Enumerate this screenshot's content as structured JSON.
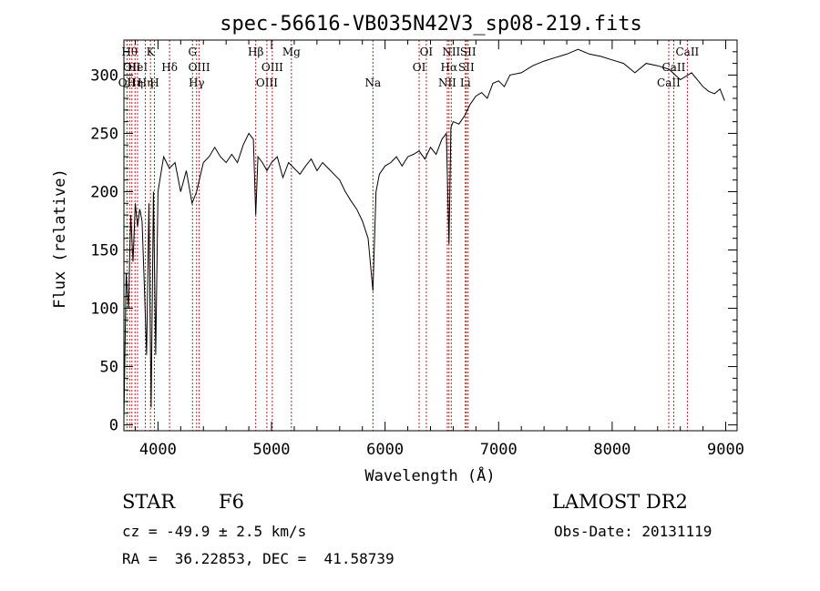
{
  "chart_data": {
    "type": "line",
    "title": "spec-56616-VB035N42V3_sp08-219.fits",
    "xlabel": "Wavelength (Å)",
    "ylabel": "Flux (relative)",
    "xlim": [
      3700,
      9100
    ],
    "ylim": [
      -5,
      330
    ],
    "xticks": [
      4000,
      5000,
      6000,
      7000,
      8000,
      9000
    ],
    "yticks": [
      0,
      50,
      100,
      150,
      200,
      250,
      300
    ],
    "line_color": "#000000",
    "marker_color": "#b22222",
    "series": [
      {
        "x": [
          3700,
          3720,
          3740,
          3760,
          3780,
          3800,
          3820,
          3840,
          3860,
          3880,
          3900,
          3920,
          3940,
          3960,
          3980,
          4000,
          4050,
          4100,
          4150,
          4200,
          4250,
          4300,
          4340,
          4400,
          4450,
          4500,
          4550,
          4600,
          4650,
          4700,
          4750,
          4800,
          4840,
          4861,
          4880,
          4920,
          4960,
          5000,
          5050,
          5100,
          5150,
          5200,
          5250,
          5300,
          5350,
          5400,
          5450,
          5500,
          5550,
          5600,
          5650,
          5700,
          5750,
          5800,
          5850,
          5893,
          5920,
          5950,
          6000,
          6050,
          6100,
          6150,
          6200,
          6250,
          6300,
          6350,
          6400,
          6450,
          6500,
          6540,
          6563,
          6580,
          6600,
          6650,
          6700,
          6750,
          6800,
          6850,
          6900,
          6950,
          7000,
          7050,
          7100,
          7200,
          7300,
          7400,
          7500,
          7600,
          7700,
          7800,
          7900,
          8000,
          8100,
          8200,
          8300,
          8400,
          8500,
          8600,
          8700,
          8800,
          8850,
          8900,
          8950,
          8990
        ],
        "y": [
          5,
          130,
          100,
          180,
          140,
          190,
          170,
          185,
          175,
          120,
          60,
          190,
          15,
          200,
          60,
          200,
          230,
          220,
          225,
          200,
          218,
          190,
          200,
          225,
          230,
          238,
          230,
          225,
          232,
          225,
          240,
          250,
          245,
          180,
          230,
          225,
          218,
          225,
          230,
          212,
          225,
          220,
          215,
          222,
          228,
          218,
          225,
          220,
          215,
          210,
          200,
          192,
          185,
          175,
          160,
          115,
          200,
          215,
          222,
          225,
          230,
          222,
          230,
          232,
          235,
          228,
          238,
          232,
          245,
          250,
          155,
          255,
          260,
          258,
          265,
          275,
          282,
          285,
          280,
          293,
          295,
          290,
          300,
          302,
          308,
          312,
          315,
          318,
          322,
          318,
          316,
          313,
          310,
          302,
          310,
          308,
          305,
          296,
          302,
          290,
          286,
          284,
          288,
          278
        ]
      }
    ],
    "line_markers": [
      {
        "w": 3727,
        "labels": [
          "OII"
        ],
        "row": 2
      },
      {
        "w": 3750,
        "labels": [
          "Hθ"
        ],
        "row": 0
      },
      {
        "w": 3770,
        "labels": [
          "OII"
        ],
        "row": 1
      },
      {
        "w": 3798,
        "labels": [
          "Hη"
        ],
        "row": 2
      },
      {
        "w": 3820,
        "labels": [
          "HeI"
        ],
        "row": 1
      },
      {
        "w": 3889,
        "labels": [
          "Hη"
        ],
        "row": 2
      },
      {
        "w": 3934,
        "labels": [
          "K"
        ],
        "row": 0
      },
      {
        "w": 3969,
        "labels": [
          "H"
        ],
        "row": 2
      },
      {
        "w": 4102,
        "labels": [
          "Hδ"
        ],
        "row": 1
      },
      {
        "w": 4304,
        "labels": [
          "G"
        ],
        "row": 0
      },
      {
        "w": 4340,
        "labels": [
          "Hγ"
        ],
        "row": 2
      },
      {
        "w": 4363,
        "labels": [
          "OIII"
        ],
        "row": 1
      },
      {
        "w": 4861,
        "labels": [
          "Hβ"
        ],
        "row": 0
      },
      {
        "w": 4959,
        "labels": [
          "OIII"
        ],
        "row": 2
      },
      {
        "w": 5007,
        "labels": [
          "OIII"
        ],
        "row": 1
      },
      {
        "w": 5175,
        "labels": [
          "Mg"
        ],
        "row": 0
      },
      {
        "w": 5893,
        "labels": [
          "Na"
        ],
        "row": 2
      },
      {
        "w": 6300,
        "labels": [
          "OI"
        ],
        "row": 1
      },
      {
        "w": 6363,
        "labels": [
          "OI"
        ],
        "row": 0
      },
      {
        "w": 6548,
        "labels": [
          "NII"
        ],
        "row": 2
      },
      {
        "w": 6563,
        "labels": [
          "Hα"
        ],
        "row": 1
      },
      {
        "w": 6583,
        "labels": [
          "NII"
        ],
        "row": 0
      },
      {
        "w": 6707,
        "labels": [
          "Li"
        ],
        "row": 2
      },
      {
        "w": 6716,
        "labels": [
          "SII"
        ],
        "row": 1
      },
      {
        "w": 6731,
        "labels": [
          "SII"
        ],
        "row": 0
      },
      {
        "w": 8498,
        "labels": [
          "CaII"
        ],
        "row": 2
      },
      {
        "w": 8542,
        "labels": [
          "CaII"
        ],
        "row": 1
      },
      {
        "w": 8662,
        "labels": [
          "CaII"
        ],
        "row": 0
      }
    ]
  },
  "info": {
    "object_class": "STAR",
    "subclass": "F6",
    "redshift": "cz = -49.9 ± 2.5 km/s",
    "coords": "RA =  36.22853, DEC =  41.58739",
    "survey": "LAMOST DR2",
    "obs_date": "Obs-Date: 20131119"
  }
}
